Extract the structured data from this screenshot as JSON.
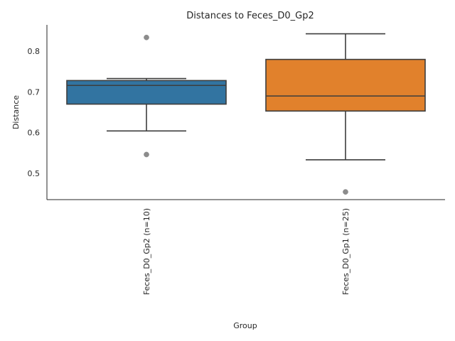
{
  "chart_data": {
    "type": "box",
    "title": "Distances to Feces_D0_Gp2",
    "xlabel": "Group",
    "ylabel": "Distance",
    "ylim": [
      0.435,
      0.865
    ],
    "yticks": [
      0.5,
      0.6,
      0.7,
      0.8
    ],
    "grid": false,
    "categories": [
      "Feces_D0_Gp2 (n=10)",
      "Feces_D0_Gp1 (n=25)"
    ],
    "boxes": [
      {
        "category": "Feces_D0_Gp2 (n=10)",
        "whisker_low": 0.604,
        "q1": 0.67,
        "median": 0.716,
        "q3": 0.728,
        "whisker_high": 0.733,
        "outliers": [
          0.834,
          0.546
        ],
        "color": "#3274a1"
      },
      {
        "category": "Feces_D0_Gp1 (n=25)",
        "whisker_low": 0.533,
        "q1": 0.653,
        "median": 0.69,
        "q3": 0.78,
        "whisker_high": 0.843,
        "outliers": [
          0.454
        ],
        "color": "#e1812c"
      }
    ],
    "line_color": "#3d3d3d",
    "outlier_color": "#8c8c8c",
    "axis_color": "#262626"
  }
}
